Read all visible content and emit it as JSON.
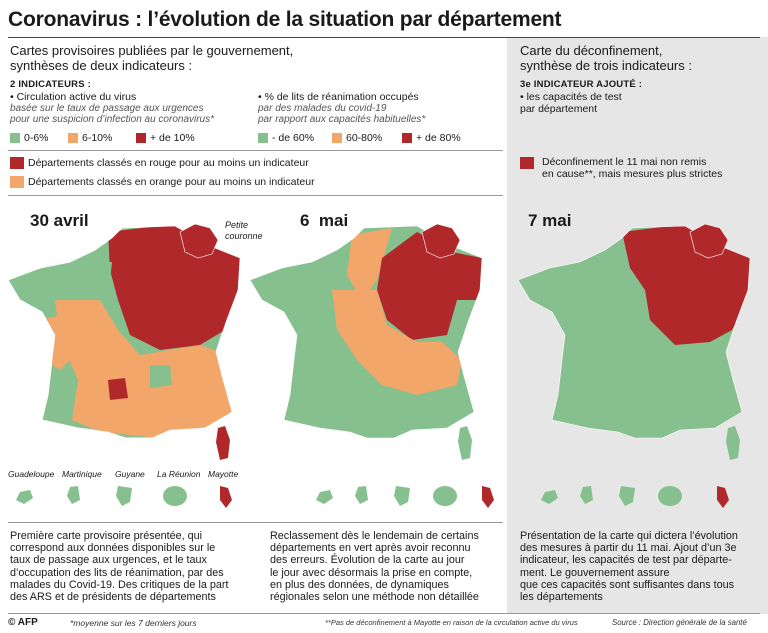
{
  "title": "Coronavirus : l’évolution de la situation par département",
  "colors": {
    "green": "#86c08e",
    "orange": "#f2a66a",
    "red": "#b0282a",
    "gray_panel": "#e6e6e6"
  },
  "left_header": {
    "heading_l1": "Cartes provisoires publiées par le gouvernement,",
    "heading_l2": "synthèses de deux indicateurs :",
    "indicators_label": "2 INDICATEURS :"
  },
  "indicator1": {
    "title": "• Circulation active du virus",
    "sub_l1": "basée sur le taux de passage aux urgences",
    "sub_l2": "pour une suspicion d’infection au coronavirus*",
    "legend": [
      "0-6%",
      "6-10%",
      "+ de 10%"
    ]
  },
  "indicator2": {
    "title": "• % de lits de réanimation occupés",
    "sub_l1": "par des malades du covid-19",
    "sub_l2": "par rapport aux capacités habituelles*",
    "legend": [
      "- de 60%",
      "60-80%",
      "+ de 80%"
    ]
  },
  "right_header": {
    "heading_l1": "Carte du déconfinement,",
    "heading_l2": "synthèse de trois indicateurs :",
    "indicator3_label": "3e INDICATEUR AJOUTÉ :",
    "indicator3_l1": "• les capacités de test",
    "indicator3_l2": "par département"
  },
  "status_legend": {
    "red": "Départements classés en rouge pour au moins un indicateur",
    "orange": "Départements classés en orange pour au moins un indicateur",
    "deconf_l1": "Déconfinement le 11 mai non remis",
    "deconf_l2": "en cause**, mais mesures plus strictes"
  },
  "maps": [
    {
      "date": "30 avril",
      "inset_label_l1": "Petite",
      "inset_label_l2": "couronne"
    },
    {
      "date": "6  mai"
    },
    {
      "date": "7 mai"
    }
  ],
  "overseas": [
    "Guadeloupe",
    "Martinique",
    "Guyane",
    "La Réunion",
    "Mayotte"
  ],
  "descriptions": [
    [
      "Première carte provisoire présentée, qui",
      "correspond aux données disponibles sur le",
      "taux de passage aux urgences, et le taux",
      "d’occupation des lits de réanimation, par des",
      "malades du Covid-19. Des critiques de la part",
      "des ARS et de présidents de départements"
    ],
    [
      "Reclassement dès le lendemain de certains",
      "départements en vert après avoir reconnu",
      "des erreurs. Évolution de la carte au jour",
      "le jour avec désormais la prise en compte,",
      "en plus des données, de dynamiques",
      "régionales selon une méthode non détaillée"
    ],
    [
      "Présentation de la carte qui dictera l’évolution",
      "des mesures à partir du 11 mai. Ajout d’un 3e",
      "indicateur, les capacités de test par départe-",
      "ment. Le gouvernement assure",
      "que ces capacités sont suffisantes dans tous",
      "les départements"
    ]
  ],
  "footer": {
    "agency": "© AFP",
    "note1": "*moyenne sur les 7 derniers jours",
    "note2": "**Pas de déconfinement à Mayotte en raison de la circulation active du virus",
    "source": "Source : Direction générale de la santé"
  }
}
